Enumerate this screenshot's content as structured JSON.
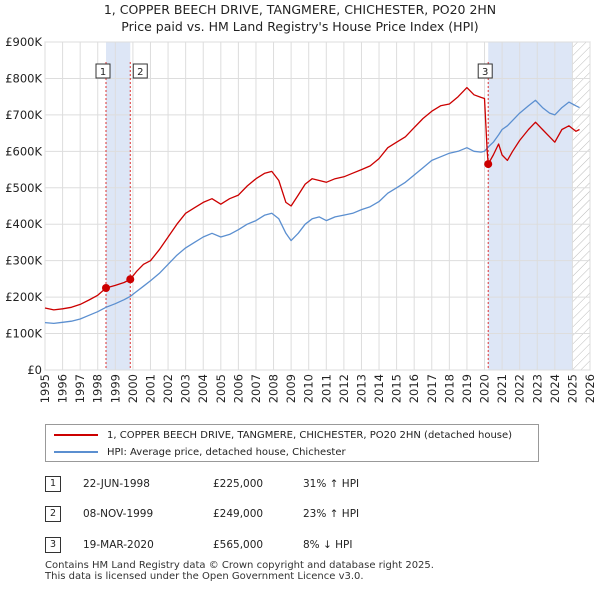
{
  "title_line1": "1, COPPER BEECH DRIVE, TANGMERE, CHICHESTER, PO20 2HN",
  "title_line2": "Price paid vs. HM Land Registry's House Price Index (HPI)",
  "colors": {
    "property": "#cc0000",
    "hpi": "#5b8fd0",
    "shade": "#dde6f6",
    "grid": "#dddddd",
    "vline": "#dd3333"
  },
  "chart_data": {
    "type": "line",
    "title": "1, COPPER BEECH DRIVE, TANGMERE, CHICHESTER, PO20 2HN — Price paid vs. HM Land Registry's House Price Index (HPI)",
    "xlim": [
      1995,
      2026
    ],
    "ylim": [
      0,
      900000
    ],
    "x_ticks": [
      1995,
      1996,
      1997,
      1998,
      1999,
      2000,
      2001,
      2002,
      2003,
      2004,
      2005,
      2006,
      2007,
      2008,
      2009,
      2010,
      2011,
      2012,
      2013,
      2014,
      2015,
      2016,
      2017,
      2018,
      2019,
      2020,
      2021,
      2022,
      2023,
      2024,
      2025,
      2026
    ],
    "y_ticks": [
      {
        "value": 0,
        "label": "£0"
      },
      {
        "value": 100000,
        "label": "£100K"
      },
      {
        "value": 200000,
        "label": "£200K"
      },
      {
        "value": 300000,
        "label": "£300K"
      },
      {
        "value": 400000,
        "label": "£400K"
      },
      {
        "value": 500000,
        "label": "£500K"
      },
      {
        "value": 600000,
        "label": "£600K"
      },
      {
        "value": 700000,
        "label": "£700K"
      },
      {
        "value": 800000,
        "label": "£800K"
      },
      {
        "value": 900000,
        "label": "£900K"
      }
    ],
    "shaded_ranges": [
      [
        1998.47,
        1999.85
      ],
      [
        2020.21,
        2025.0
      ]
    ],
    "hatched_range": [
      2025.0,
      2026
    ],
    "series": [
      {
        "name": "1, COPPER BEECH DRIVE, TANGMERE, CHICHESTER, PO20 2HN (detached house)",
        "points": [
          [
            1995.0,
            170000
          ],
          [
            1995.5,
            165000
          ],
          [
            1996.0,
            168000
          ],
          [
            1996.5,
            172000
          ],
          [
            1997.0,
            180000
          ],
          [
            1997.5,
            192000
          ],
          [
            1998.0,
            205000
          ],
          [
            1998.47,
            225000
          ],
          [
            1999.0,
            232000
          ],
          [
            1999.5,
            240000
          ],
          [
            1999.85,
            249000
          ],
          [
            2000.2,
            270000
          ],
          [
            2000.6,
            290000
          ],
          [
            2001.0,
            300000
          ],
          [
            2001.5,
            330000
          ],
          [
            2002.0,
            365000
          ],
          [
            2002.5,
            400000
          ],
          [
            2003.0,
            430000
          ],
          [
            2003.5,
            445000
          ],
          [
            2004.0,
            460000
          ],
          [
            2004.5,
            470000
          ],
          [
            2005.0,
            455000
          ],
          [
            2005.5,
            470000
          ],
          [
            2006.0,
            480000
          ],
          [
            2006.5,
            505000
          ],
          [
            2007.0,
            525000
          ],
          [
            2007.5,
            540000
          ],
          [
            2007.9,
            545000
          ],
          [
            2008.3,
            520000
          ],
          [
            2008.7,
            460000
          ],
          [
            2009.0,
            450000
          ],
          [
            2009.4,
            480000
          ],
          [
            2009.8,
            510000
          ],
          [
            2010.2,
            525000
          ],
          [
            2010.6,
            520000
          ],
          [
            2011.0,
            515000
          ],
          [
            2011.5,
            525000
          ],
          [
            2012.0,
            530000
          ],
          [
            2012.5,
            540000
          ],
          [
            2013.0,
            550000
          ],
          [
            2013.5,
            560000
          ],
          [
            2014.0,
            580000
          ],
          [
            2014.5,
            610000
          ],
          [
            2015.0,
            625000
          ],
          [
            2015.5,
            640000
          ],
          [
            2016.0,
            665000
          ],
          [
            2016.5,
            690000
          ],
          [
            2017.0,
            710000
          ],
          [
            2017.5,
            725000
          ],
          [
            2018.0,
            730000
          ],
          [
            2018.5,
            750000
          ],
          [
            2019.0,
            775000
          ],
          [
            2019.4,
            755000
          ],
          [
            2019.8,
            748000
          ],
          [
            2020.0,
            745000
          ],
          [
            2020.15,
            600000
          ],
          [
            2020.21,
            565000
          ],
          [
            2020.5,
            590000
          ],
          [
            2020.8,
            620000
          ],
          [
            2021.0,
            590000
          ],
          [
            2021.3,
            575000
          ],
          [
            2021.6,
            600000
          ],
          [
            2022.0,
            630000
          ],
          [
            2022.5,
            660000
          ],
          [
            2022.9,
            680000
          ],
          [
            2023.3,
            660000
          ],
          [
            2023.7,
            640000
          ],
          [
            2024.0,
            625000
          ],
          [
            2024.4,
            660000
          ],
          [
            2024.8,
            670000
          ],
          [
            2025.2,
            655000
          ],
          [
            2025.4,
            660000
          ]
        ]
      },
      {
        "name": "HPI: Average price, detached house, Chichester",
        "points": [
          [
            1995.0,
            130000
          ],
          [
            1995.5,
            128000
          ],
          [
            1996.0,
            131000
          ],
          [
            1996.5,
            134000
          ],
          [
            1997.0,
            140000
          ],
          [
            1997.5,
            150000
          ],
          [
            1998.0,
            160000
          ],
          [
            1998.47,
            172000
          ],
          [
            1999.0,
            182000
          ],
          [
            1999.5,
            193000
          ],
          [
            1999.85,
            202000
          ],
          [
            2000.2,
            215000
          ],
          [
            2000.6,
            230000
          ],
          [
            2001.0,
            245000
          ],
          [
            2001.5,
            265000
          ],
          [
            2002.0,
            290000
          ],
          [
            2002.5,
            315000
          ],
          [
            2003.0,
            335000
          ],
          [
            2003.5,
            350000
          ],
          [
            2004.0,
            365000
          ],
          [
            2004.5,
            375000
          ],
          [
            2005.0,
            365000
          ],
          [
            2005.5,
            372000
          ],
          [
            2006.0,
            385000
          ],
          [
            2006.5,
            400000
          ],
          [
            2007.0,
            410000
          ],
          [
            2007.5,
            425000
          ],
          [
            2007.9,
            430000
          ],
          [
            2008.3,
            415000
          ],
          [
            2008.7,
            375000
          ],
          [
            2009.0,
            355000
          ],
          [
            2009.4,
            375000
          ],
          [
            2009.8,
            400000
          ],
          [
            2010.2,
            415000
          ],
          [
            2010.6,
            420000
          ],
          [
            2011.0,
            410000
          ],
          [
            2011.5,
            420000
          ],
          [
            2012.0,
            425000
          ],
          [
            2012.5,
            430000
          ],
          [
            2013.0,
            440000
          ],
          [
            2013.5,
            448000
          ],
          [
            2014.0,
            462000
          ],
          [
            2014.5,
            485000
          ],
          [
            2015.0,
            500000
          ],
          [
            2015.5,
            515000
          ],
          [
            2016.0,
            535000
          ],
          [
            2016.5,
            555000
          ],
          [
            2017.0,
            575000
          ],
          [
            2017.5,
            585000
          ],
          [
            2018.0,
            595000
          ],
          [
            2018.5,
            600000
          ],
          [
            2019.0,
            610000
          ],
          [
            2019.4,
            600000
          ],
          [
            2019.8,
            598000
          ],
          [
            2020.0,
            600000
          ],
          [
            2020.21,
            612000
          ],
          [
            2020.5,
            625000
          ],
          [
            2020.8,
            645000
          ],
          [
            2021.0,
            660000
          ],
          [
            2021.3,
            670000
          ],
          [
            2021.6,
            685000
          ],
          [
            2022.0,
            705000
          ],
          [
            2022.5,
            725000
          ],
          [
            2022.9,
            740000
          ],
          [
            2023.3,
            720000
          ],
          [
            2023.7,
            705000
          ],
          [
            2024.0,
            700000
          ],
          [
            2024.4,
            720000
          ],
          [
            2024.8,
            735000
          ],
          [
            2025.2,
            725000
          ],
          [
            2025.4,
            720000
          ]
        ]
      }
    ],
    "sales": [
      {
        "label": "1",
        "date": "22-JUN-1998",
        "x": 1998.47,
        "price": 225000
      },
      {
        "label": "2",
        "date": "08-NOV-1999",
        "x": 1999.85,
        "price": 249000
      },
      {
        "label": "3",
        "date": "19-MAR-2020",
        "x": 2020.21,
        "price": 565000
      }
    ]
  },
  "legend": {
    "property_label": "1, COPPER BEECH DRIVE, TANGMERE, CHICHESTER, PO20 2HN (detached house)",
    "hpi_label": "HPI: Average price, detached house, Chichester"
  },
  "transactions": [
    {
      "num": "1",
      "date": "22-JUN-1998",
      "price": "£225,000",
      "hpi": "31% ↑ HPI"
    },
    {
      "num": "2",
      "date": "08-NOV-1999",
      "price": "£249,000",
      "hpi": "23% ↑ HPI"
    },
    {
      "num": "3",
      "date": "19-MAR-2020",
      "price": "£565,000",
      "hpi": "8% ↓ HPI"
    }
  ],
  "footer": {
    "line1": "Contains HM Land Registry data © Crown copyright and database right 2025.",
    "line2": "This data is licensed under the Open Government Licence v3.0."
  }
}
